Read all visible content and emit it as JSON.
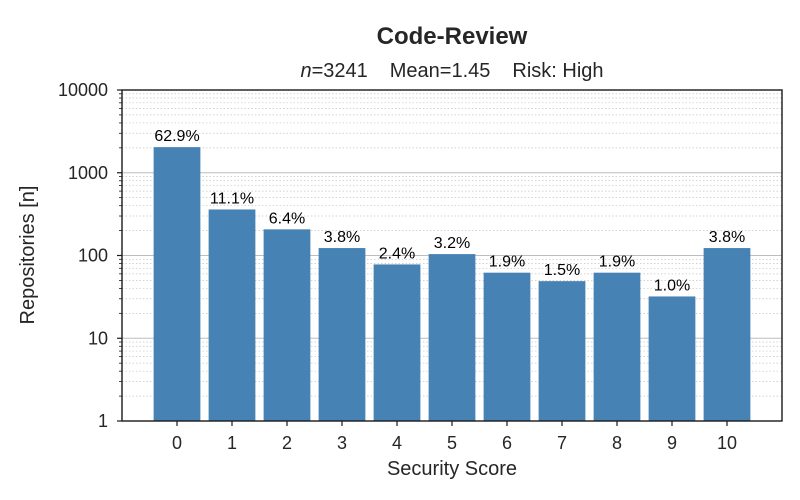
{
  "chart_data": {
    "type": "bar",
    "title": "Code-Review",
    "subtitle": {
      "n_label": "n",
      "n_value": "=3241",
      "mean": "Mean=1.45",
      "risk": "Risk: High"
    },
    "xlabel": "Security Score",
    "ylabel": "Repositories [n]",
    "categories": [
      "0",
      "1",
      "2",
      "3",
      "4",
      "5",
      "6",
      "7",
      "8",
      "9",
      "10"
    ],
    "values": [
      2039,
      360,
      207,
      123,
      78,
      104,
      62,
      49,
      62,
      32,
      123
    ],
    "data_labels": [
      "62.9%",
      "11.1%",
      "6.4%",
      "3.8%",
      "2.4%",
      "3.2%",
      "1.9%",
      "1.5%",
      "1.9%",
      "1.0%",
      "3.8%"
    ],
    "y_scale": "log",
    "ylim": [
      1,
      10000
    ],
    "y_ticks": [
      1,
      10,
      100,
      1000,
      10000
    ],
    "y_tick_labels": [
      "1",
      "10",
      "100",
      "1000",
      "10000"
    ],
    "grid": true,
    "bar_color": "#4682b4"
  }
}
